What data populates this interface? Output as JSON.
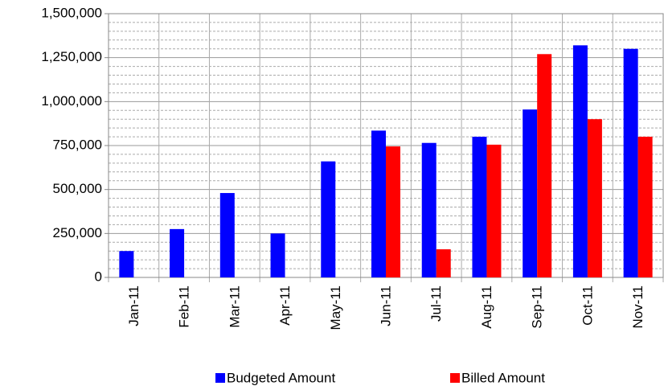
{
  "chart_data": {
    "type": "bar",
    "categories": [
      "Jan-11",
      "Feb-11",
      "Mar-11",
      "Apr-11",
      "May-11",
      "Jun-11",
      "Jul-11",
      "Aug-11",
      "Sep-11",
      "Oct-11",
      "Nov-11"
    ],
    "series": [
      {
        "name": "Budgeted Amount",
        "color": "#0000ff",
        "values": [
          150000,
          275000,
          480000,
          250000,
          660000,
          835000,
          765000,
          800000,
          955000,
          1320000,
          1300000
        ]
      },
      {
        "name": "Billed Amount",
        "color": "#ff0000",
        "values": [
          0,
          0,
          0,
          0,
          0,
          745000,
          160000,
          755000,
          1270000,
          900000,
          800000
        ]
      }
    ],
    "ylim": [
      0,
      1500000
    ],
    "yticks": [
      0,
      {
        "value": 250000,
        "label": "250,000"
      },
      {
        "value": 500000,
        "label": "500,000"
      },
      {
        "value": 750000,
        "label": "750,000"
      },
      {
        "value": 1000000,
        "label": "1,000,000"
      },
      {
        "value": 1250000,
        "label": "1,250,000"
      },
      {
        "value": 1500000,
        "label": "1,500,000"
      }
    ],
    "grid": true,
    "legend": "bottom"
  }
}
